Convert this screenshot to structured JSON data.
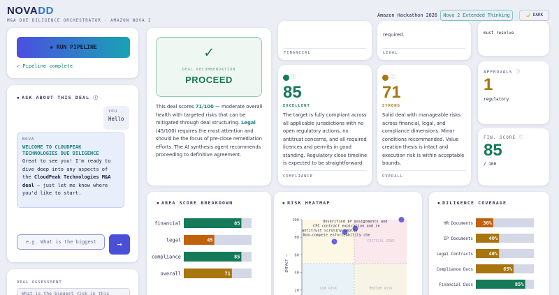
{
  "header": {
    "logo_a": "NOVA",
    "logo_b": "DD",
    "subtitle": "M&A DUE DILIGENCE ORCHESTRATOR · AMAZON NOVA 2",
    "event": "Amazon Hackathon 2026",
    "model": "Nova 2 Extended Thinking",
    "theme_button": "🌙 DARK"
  },
  "pipeline": {
    "button": "◈ RUN PIPELINE",
    "status": "✓ Pipeline complete"
  },
  "chat": {
    "title": "ASK ABOUT THIS DEAL",
    "user_label": "YOU",
    "user_message": "Hello",
    "bot_label": "NOVA",
    "bot_heading": "WELCOME TO CLOUDPEAK TECHNOLOGIES DUE DILIGENCE",
    "bot_message": [
      "Great to see you! I'm ready to dive deep into any aspects of the ",
      "CloudPeak Technologies M&A deal",
      " — just let me know where you'd like to start."
    ],
    "input_placeholder": "e.g. What is the biggest",
    "send": "→"
  },
  "assessment": {
    "title": "DEAL ASSESSMENT",
    "input": "What is the biggest risk in this deal?"
  },
  "recommendation": {
    "icon": "✓",
    "label": "DEAL RECOMMENDATION",
    "verdict": "PROCEED",
    "text": [
      "This deal scores ",
      "71/100",
      " — moderate overall health with targeted risks that can be mitigated through deal structuring. ",
      "Legal",
      " (45/100) requires the most attention and should be the focus of pre-close remediation efforts. The AI synthesis agent recommends proceeding to definitive agreement."
    ]
  },
  "financial_card": {
    "label": "FINANCIAL"
  },
  "legal_card": {
    "snippet": "required.",
    "label": "LEGAL"
  },
  "conditions_card": {
    "snippet": "must resolve"
  },
  "score_cards": [
    {
      "score": 85,
      "grade": "EXCELLENT",
      "text": "The target is fully compliant across all applicable jurisdictions with no open regulatory actions, no antitrust concerns, and all required licences and permits in good standing. Regulatory close timeline is expected to be straightforward.",
      "label": "COMPLIANCE",
      "color": "#157a57"
    },
    {
      "score": 71,
      "grade": "STRONG",
      "text": "Solid deal with manageable risks across financial, legal, and compliance dimensions. Minor conditions recommended. Value creation thesis is intact and execution risk is within acceptable bounds.",
      "label": "OVERALL",
      "color": "#a8750f"
    }
  ],
  "approvals": {
    "label": "APPROVALS",
    "value": 1,
    "unit": "regulatory"
  },
  "fin_score": {
    "label": "FIN. SCORE",
    "value": 85,
    "unit": "/ 100"
  },
  "chart_data": [
    {
      "type": "bar",
      "title": "AREA SCORE BREAKDOWN",
      "categories": [
        "financial",
        "legal",
        "compliance",
        "overall"
      ],
      "values": [
        85,
        45,
        85,
        71
      ],
      "colors": [
        "#157a57",
        "#c2610c",
        "#157a57",
        "#a8750f"
      ],
      "xlim": [
        0,
        100
      ]
    },
    {
      "type": "scatter",
      "title": "RISK HEATMAP",
      "y_label": "IMPACT →",
      "x": [
        95,
        51,
        41,
        31
      ],
      "y": [
        100,
        90,
        86,
        75
      ],
      "labels": [
        "Unverified IP assignments and",
        "CFC contract expiration and re",
        "antitrust scrutiny  employ",
        "Non-compete enforceability che"
      ],
      "quadrant_labels": [
        "CRITICAL ZONE",
        "LOW RISK",
        "MEDIUM RISK"
      ],
      "color": "#5b55d8",
      "xlim": [
        0,
        100
      ],
      "ylim": [
        0,
        100
      ],
      "yticks": [
        20,
        40,
        60,
        80,
        100
      ]
    },
    {
      "type": "bar",
      "title": "DILIGENCE COVERAGE",
      "categories": [
        "HR Documents",
        "IP Documents",
        "Legal Contracts",
        "Compliance Docs",
        "Financial Docs"
      ],
      "values": [
        30,
        40,
        40,
        65,
        85
      ],
      "value_labels": [
        "30%",
        "40%",
        "40%",
        "65%",
        "85%"
      ],
      "colors": [
        "#c2610c",
        "#a8750f",
        "#a8750f",
        "#a8750f",
        "#157a57"
      ],
      "xlim": [
        0,
        100
      ]
    }
  ]
}
